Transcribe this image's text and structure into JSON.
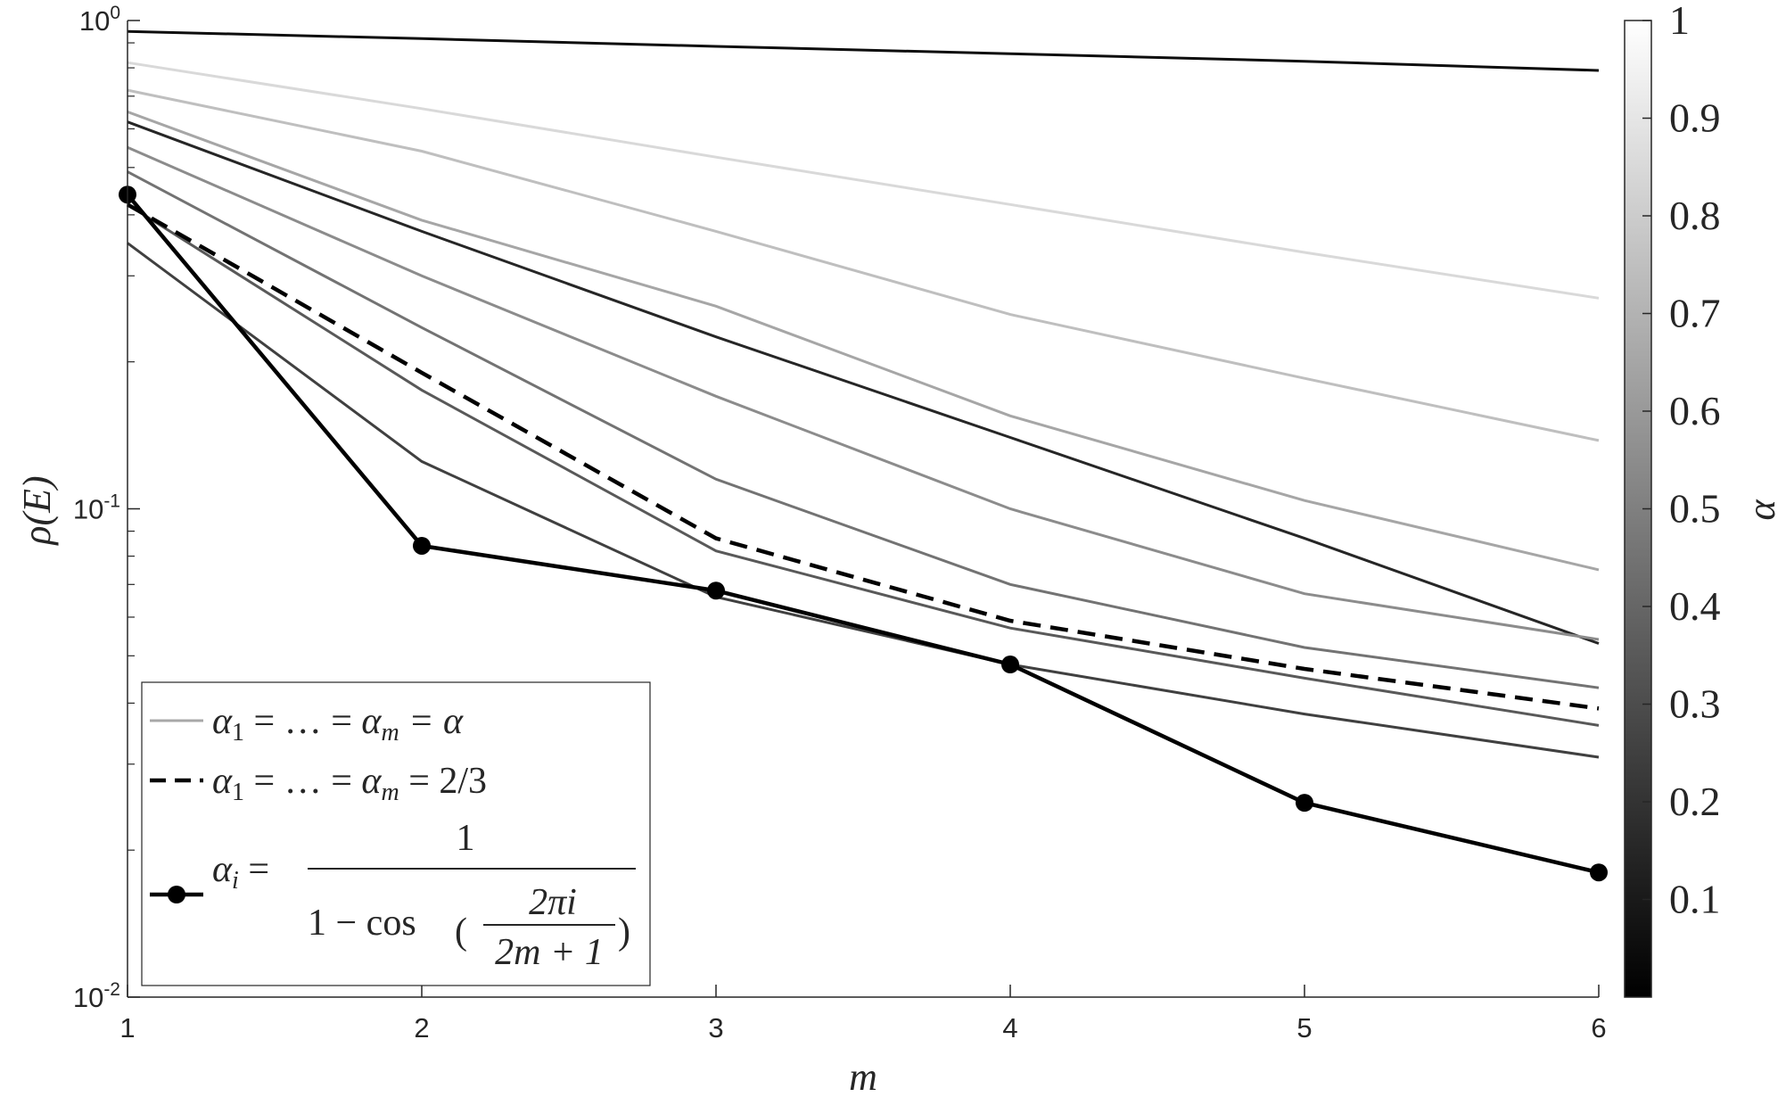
{
  "chart_data": {
    "type": "line",
    "xlabel": "m",
    "ylabel": "ρ(E)",
    "x": [
      1,
      2,
      3,
      4,
      5,
      6
    ],
    "xlim": [
      1,
      6
    ],
    "ylim": [
      0.01,
      1
    ],
    "yscale": "log",
    "grid": false,
    "legend_position": "bottom-left",
    "xticks": [
      "1",
      "2",
      "3",
      "4",
      "5",
      "6"
    ],
    "yticks": [
      {
        "value": 1,
        "base": "10",
        "exp": "0"
      },
      {
        "value": 0.1,
        "base": "10",
        "exp": "-1"
      },
      {
        "value": 0.01,
        "base": "10",
        "exp": "-2"
      }
    ],
    "colorbar": {
      "label": "α",
      "range": [
        0,
        1
      ],
      "ticks": [
        "0.1",
        "0.2",
        "0.3",
        "0.4",
        "0.5",
        "0.6",
        "0.7",
        "0.8",
        "0.9",
        "1"
      ],
      "colormap": "gray"
    },
    "gray_series": [
      {
        "alpha": 0.05,
        "values": [
          0.95,
          0.918,
          0.885,
          0.855,
          0.825,
          0.79
        ]
      },
      {
        "alpha": 0.15,
        "values": [
          0.62,
          0.37,
          0.225,
          0.14,
          0.087,
          0.053
        ]
      },
      {
        "alpha": 0.25,
        "values": [
          0.35,
          0.125,
          0.066,
          0.048,
          0.038,
          0.031
        ]
      },
      {
        "alpha": 0.35,
        "values": [
          0.42,
          0.175,
          0.082,
          0.057,
          0.045,
          0.036
        ]
      },
      {
        "alpha": 0.45,
        "values": [
          0.49,
          0.235,
          0.115,
          0.07,
          0.052,
          0.043
        ]
      },
      {
        "alpha": 0.55,
        "values": [
          0.55,
          0.3,
          0.17,
          0.1,
          0.067,
          0.054
        ]
      },
      {
        "alpha": 0.65,
        "values": [
          0.65,
          0.39,
          0.26,
          0.155,
          0.104,
          0.075
        ]
      },
      {
        "alpha": 0.75,
        "values": [
          0.72,
          0.54,
          0.37,
          0.25,
          0.185,
          0.138
        ]
      },
      {
        "alpha": 0.85,
        "values": [
          0.82,
          0.66,
          0.525,
          0.42,
          0.335,
          0.27
        ]
      }
    ],
    "series": [
      {
        "name": "α1 = … = αm = 2/3",
        "style": "dashed",
        "values": [
          0.42,
          0.19,
          0.087,
          0.059,
          0.047,
          0.039
        ]
      },
      {
        "name": "αi = 1 / (1 − cos(2πi/(2m+1)))",
        "style": "solid-marker",
        "values": [
          0.44,
          0.084,
          0.068,
          0.048,
          0.025,
          0.018
        ]
      }
    ],
    "legend": {
      "entry1": {
        "lhs": "α",
        "sub1": "1",
        "eq1": " = … = ",
        "lhs2": "α",
        "subm": "m",
        "rhs": " = α"
      },
      "entry2": {
        "lhs": "α",
        "sub1": "1",
        "eq1": " = … = ",
        "lhs2": "α",
        "subm": "m",
        "rhs": " = 2/3"
      },
      "entry3": {
        "lhs": "α",
        "subi": "i",
        "eq": " = ",
        "numerator": "1",
        "den_a": "1 − cos",
        "frac_num": "2πi",
        "frac_den": "2m + 1"
      }
    },
    "colors": {
      "axis": "#262626",
      "legend_gray": "#a8a8a8",
      "highlight": "#000000"
    }
  }
}
